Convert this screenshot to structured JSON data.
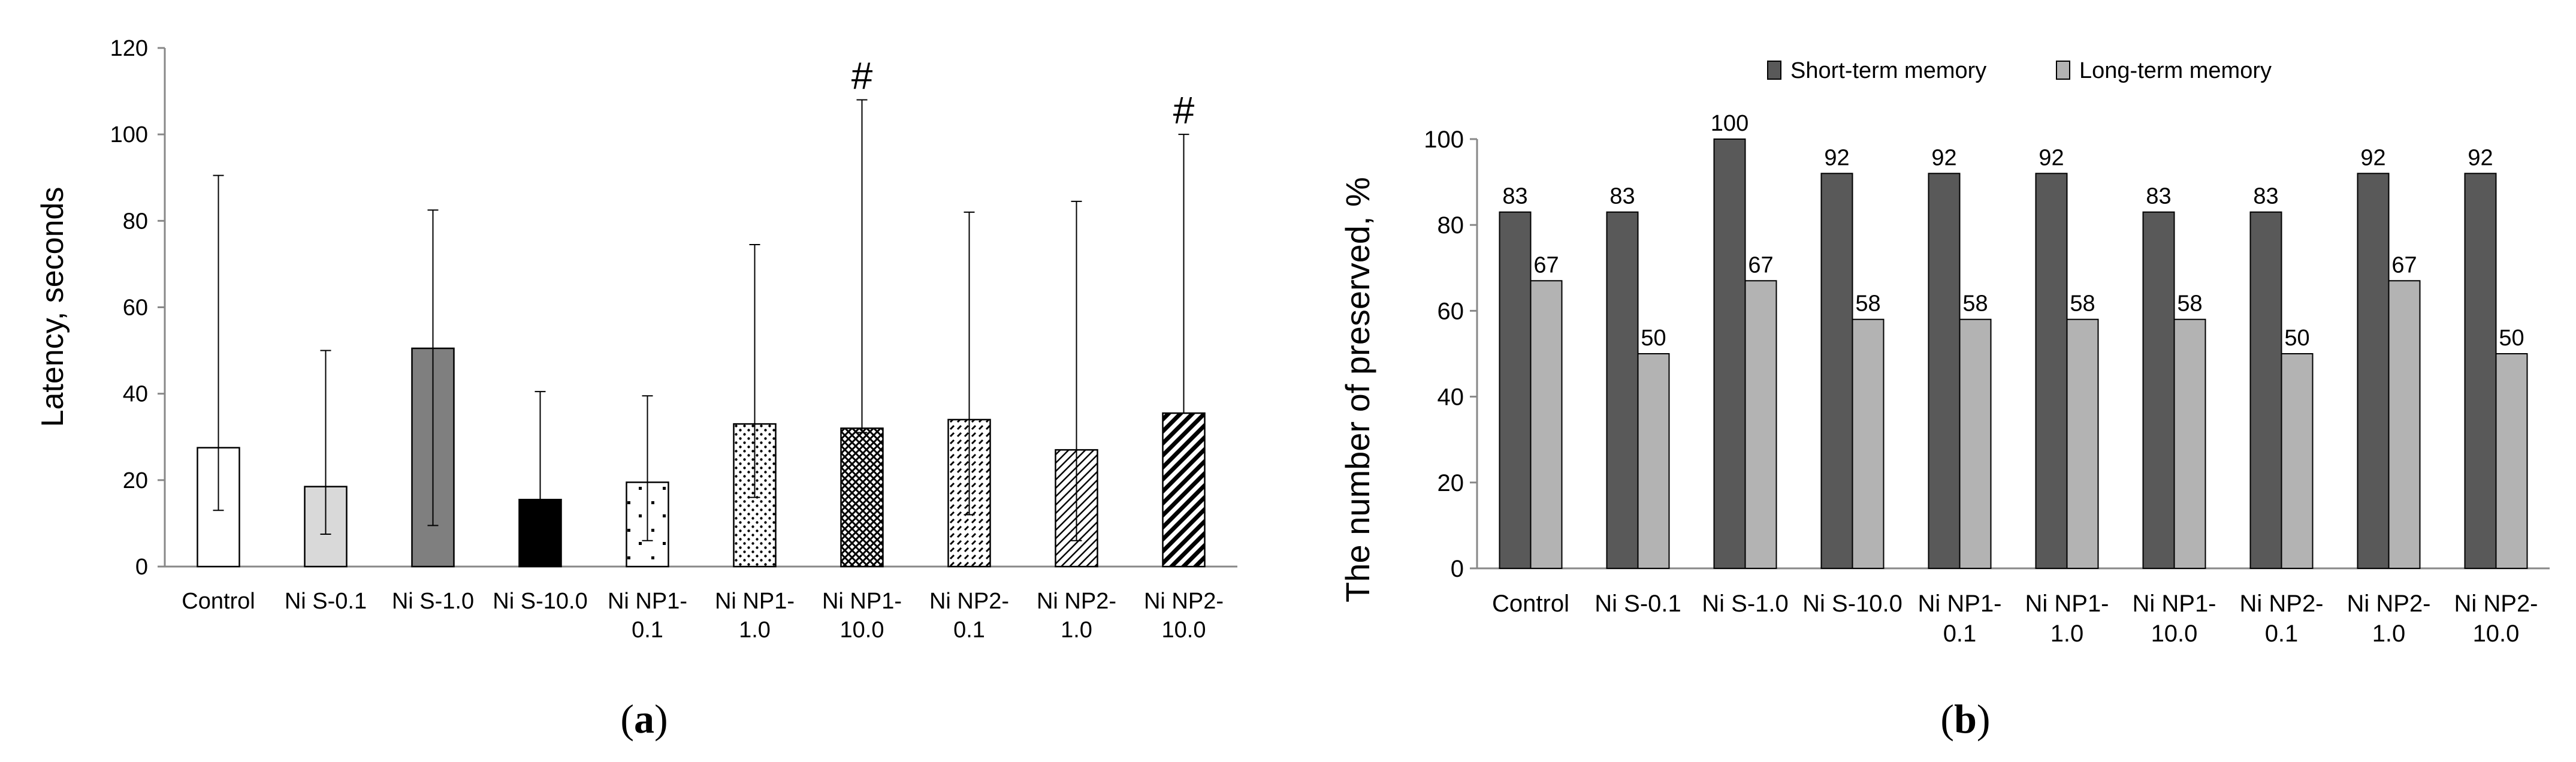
{
  "chart_data": [
    {
      "panel": "(a)",
      "panel_letter": "a",
      "type": "bar",
      "ylabel": "Latency, seconds",
      "xlabel": "",
      "ylim": [
        0,
        120
      ],
      "yticks": [
        "0",
        "20",
        "40",
        "60",
        "80",
        "100",
        "120"
      ],
      "categories": [
        [
          "Control"
        ],
        [
          "Ni S-0.1"
        ],
        [
          "Ni S-1.0"
        ],
        [
          "Ni S-10.0"
        ],
        [
          "Ni NP1-",
          "0.1"
        ],
        [
          "Ni NP1-",
          "1.0"
        ],
        [
          "Ni NP1-",
          "10.0"
        ],
        [
          "Ni NP2-",
          "0.1"
        ],
        [
          "Ni NP2-",
          "1.0"
        ],
        [
          "Ni NP2-",
          "10.0"
        ]
      ],
      "values": [
        27.5,
        18.5,
        50.5,
        15.5,
        19.5,
        33.0,
        32.0,
        34.0,
        27.0,
        35.5
      ],
      "error_upper": [
        90.5,
        50.0,
        82.5,
        40.5,
        39.5,
        74.5,
        108.0,
        82.0,
        84.5,
        100.0
      ],
      "error_lower": [
        13.0,
        7.5,
        9.5,
        15.5,
        6.0,
        16.0,
        31.0,
        12.0,
        6.0,
        35.5
      ],
      "fills": [
        "white",
        "lightgray",
        "gray",
        "black",
        "sparse-dots",
        "dense-dots",
        "crosshatch",
        "dashes",
        "diagonal-thin",
        "diagonal-thick"
      ],
      "annotations": [
        "",
        "",
        "",
        "",
        "",
        "",
        "#",
        "",
        "",
        "#"
      ]
    },
    {
      "panel": "(b)",
      "panel_letter": "b",
      "type": "bar",
      "ylabel": "The number of preserved, %",
      "xlabel": "",
      "ylim": [
        0,
        100
      ],
      "yticks": [
        "0",
        "20",
        "40",
        "60",
        "80",
        "100"
      ],
      "legend_position": "top",
      "categories": [
        [
          "Control"
        ],
        [
          "Ni S-0.1"
        ],
        [
          "Ni S-1.0"
        ],
        [
          "Ni S-10.0"
        ],
        [
          "Ni NP1-",
          "0.1"
        ],
        [
          "Ni NP1-",
          "1.0"
        ],
        [
          "Ni NP1-",
          "10.0"
        ],
        [
          "Ni NP2-",
          "0.1"
        ],
        [
          "Ni NP2-",
          "1.0"
        ],
        [
          "Ni NP2-",
          "10.0"
        ]
      ],
      "series": [
        {
          "name": "Short-term memory",
          "color": "#595959",
          "values": [
            83,
            83,
            100,
            92,
            92,
            92,
            83,
            83,
            92,
            92
          ]
        },
        {
          "name": "Long-term memory",
          "color": "#b3b3b3",
          "values": [
            67,
            50,
            67,
            58,
            58,
            58,
            58,
            50,
            67,
            50
          ]
        }
      ]
    }
  ]
}
